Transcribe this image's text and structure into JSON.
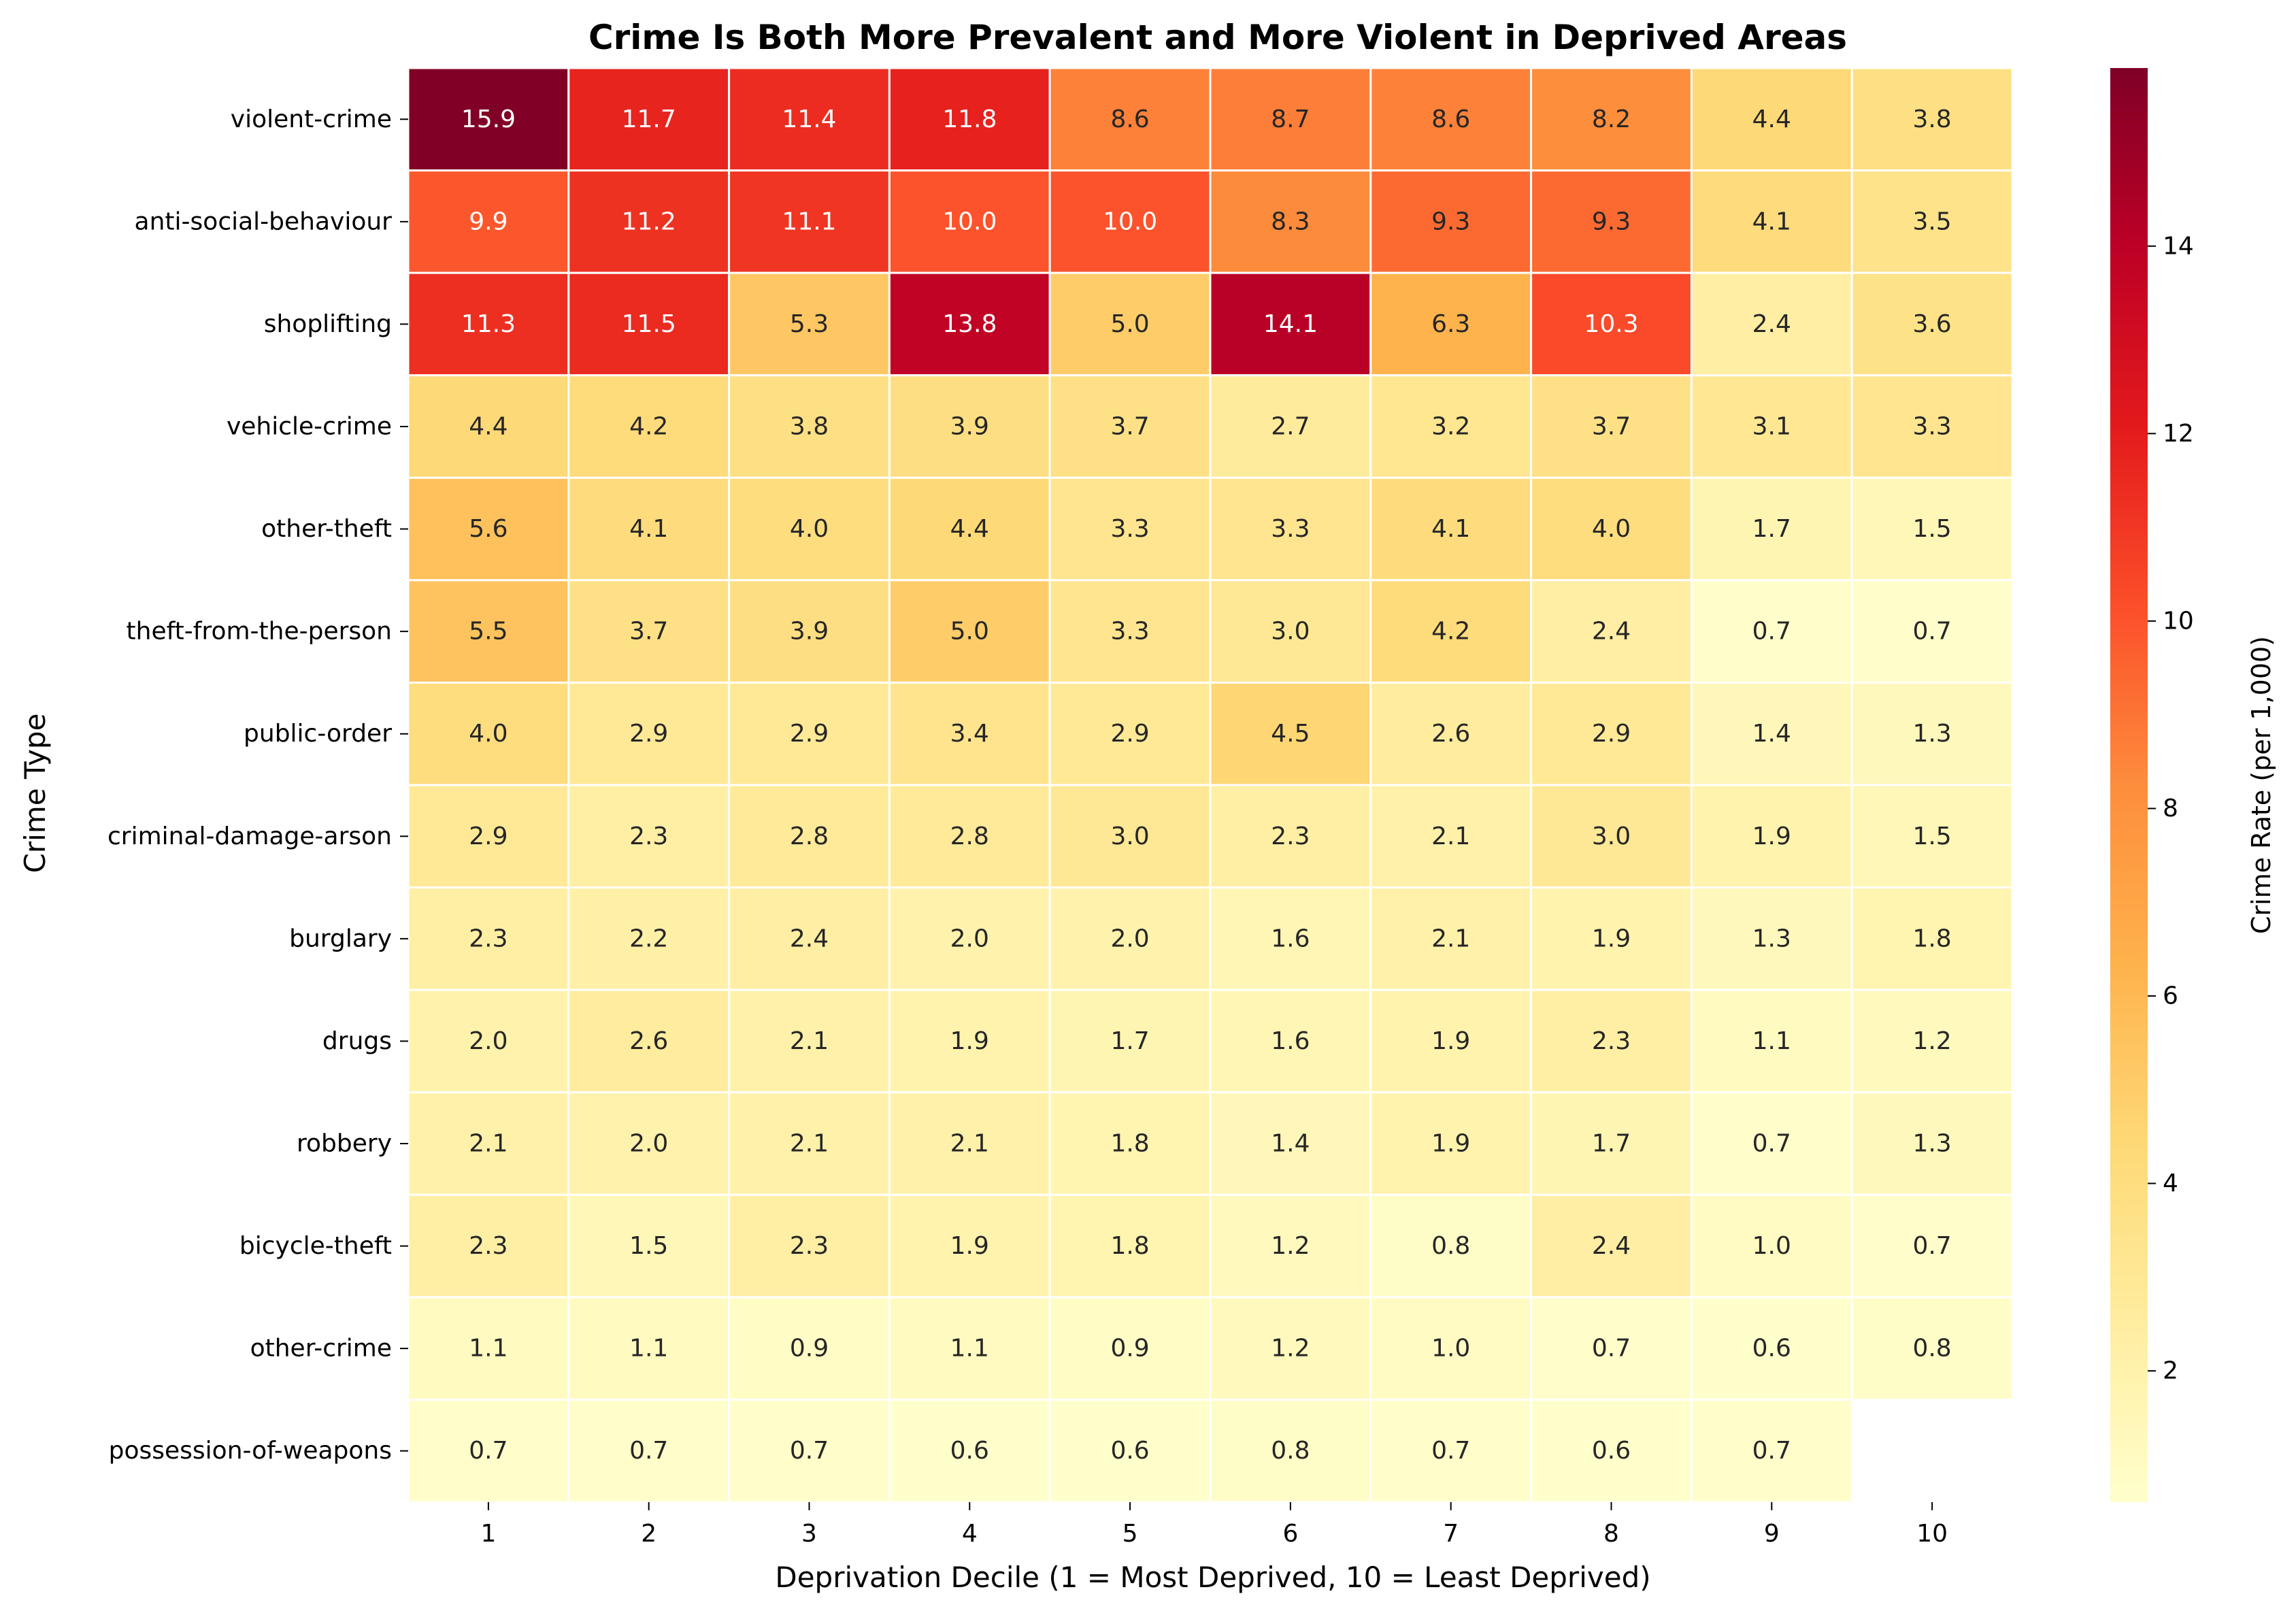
{
  "chart_data": {
    "type": "heatmap",
    "title": "Crime Is Both More Prevalent and More Violent in Deprived Areas",
    "xlabel": "Deprivation Decile (1 = Most Deprived, 10 = Least Deprived)",
    "ylabel": "Crime Type",
    "colorbar_label": "Crime Rate (per 1,000)",
    "colormap": "YlOrRd",
    "vmin": 0.6,
    "vmax": 15.9,
    "colorbar_ticks": [
      2,
      4,
      6,
      8,
      10,
      12,
      14
    ],
    "x": [
      "1",
      "2",
      "3",
      "4",
      "5",
      "6",
      "7",
      "8",
      "9",
      "10"
    ],
    "y": [
      "violent-crime",
      "anti-social-behaviour",
      "shoplifting",
      "vehicle-crime",
      "other-theft",
      "theft-from-the-person",
      "public-order",
      "criminal-damage-arson",
      "burglary",
      "drugs",
      "robbery",
      "bicycle-theft",
      "other-crime",
      "possession-of-weapons"
    ],
    "values": [
      [
        15.9,
        11.7,
        11.4,
        11.8,
        8.6,
        8.7,
        8.6,
        8.2,
        4.4,
        3.8
      ],
      [
        9.9,
        11.2,
        11.1,
        10.0,
        10.0,
        8.3,
        9.3,
        9.3,
        4.1,
        3.5
      ],
      [
        11.3,
        11.5,
        5.3,
        13.8,
        5.0,
        14.1,
        6.3,
        10.3,
        2.4,
        3.6
      ],
      [
        4.4,
        4.2,
        3.8,
        3.9,
        3.7,
        2.7,
        3.2,
        3.7,
        3.1,
        3.3
      ],
      [
        5.6,
        4.1,
        4.0,
        4.4,
        3.3,
        3.3,
        4.1,
        4.0,
        1.7,
        1.5
      ],
      [
        5.5,
        3.7,
        3.9,
        5.0,
        3.3,
        3.0,
        4.2,
        2.4,
        0.7,
        0.7
      ],
      [
        4.0,
        2.9,
        2.9,
        3.4,
        2.9,
        4.5,
        2.6,
        2.9,
        1.4,
        1.3
      ],
      [
        2.9,
        2.3,
        2.8,
        2.8,
        3.0,
        2.3,
        2.1,
        3.0,
        1.9,
        1.5
      ],
      [
        2.3,
        2.2,
        2.4,
        2.0,
        2.0,
        1.6,
        2.1,
        1.9,
        1.3,
        1.8
      ],
      [
        2.0,
        2.6,
        2.1,
        1.9,
        1.7,
        1.6,
        1.9,
        2.3,
        1.1,
        1.2
      ],
      [
        2.1,
        2.0,
        2.1,
        2.1,
        1.8,
        1.4,
        1.9,
        1.7,
        0.7,
        1.3
      ],
      [
        2.3,
        1.5,
        2.3,
        1.9,
        1.8,
        1.2,
        0.8,
        2.4,
        1.0,
        0.7
      ],
      [
        1.1,
        1.1,
        0.9,
        1.1,
        0.9,
        1.2,
        1.0,
        0.7,
        0.6,
        0.8
      ],
      [
        0.7,
        0.7,
        0.7,
        0.6,
        0.6,
        0.8,
        0.7,
        0.6,
        0.7,
        null
      ]
    ]
  }
}
